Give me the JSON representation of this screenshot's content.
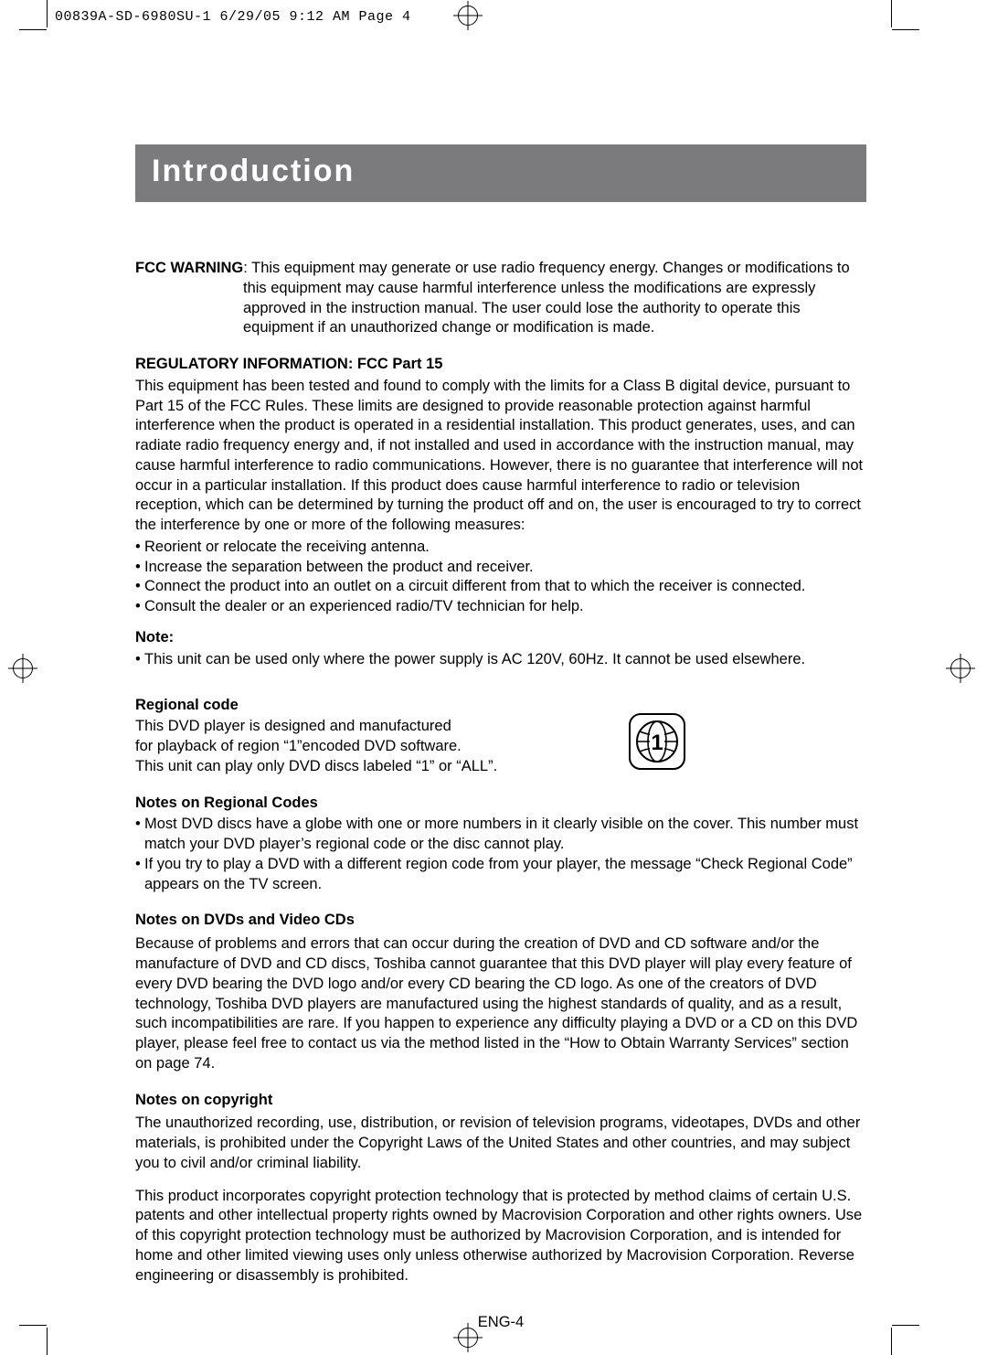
{
  "slug": "00839A-SD-6980SU-1  6/29/05  9:12 AM  Page 4",
  "title": "Introduction",
  "fcc_warning_label": "FCC WARNING",
  "fcc_warning_line1": ": This equipment may generate or use radio frequency energy. Changes or modifications to",
  "fcc_warning_line2": "this equipment may cause harmful interference unless the modifications are expressly",
  "fcc_warning_line3": "approved in the instruction manual. The user could lose the authority to operate this",
  "fcc_warning_line4": "equipment if an unauthorized change or modification is made.",
  "reg_info_heading": "REGULATORY INFORMATION: FCC Part 15",
  "reg_info_body": "This equipment has been tested and found to comply with the limits for a Class B digital device, pursuant to Part 15 of the FCC Rules. These limits are designed to provide reasonable protection against harmful interference when the product is operated in a residential installation. This product generates, uses, and can radiate radio frequency energy and, if not installed and used in accordance with the instruction manual, may cause harmful interference to radio communications. However, there is no guarantee that interference will not occur in a particular installation. If this product does cause harmful interference to radio or television reception, which can be determined by turning the product off and on, the user is encouraged to try to correct the interference by one or more of the following measures:",
  "reg_bullets": [
    "Reorient or relocate the receiving antenna.",
    "Increase the separation between the product and receiver.",
    "Connect the product into an outlet on a circuit different from that to which the receiver is connected.",
    "Consult the dealer or an experienced radio/TV technician for help."
  ],
  "note_label": "Note:",
  "note_bullet": "This unit can be used only where the power supply is AC 120V, 60Hz. It cannot be used elsewhere.",
  "regional_code_heading": "Regional code",
  "regional_code_l1": "This DVD player is designed and manufactured",
  "regional_code_l2": "for playback of region “1”encoded DVD software.",
  "regional_code_l3": "This unit can play only DVD discs labeled “1” or “ALL”.",
  "region_number": "1",
  "notes_regional_heading": "Notes on Regional Codes",
  "notes_regional_bullets": [
    "Most DVD discs have a globe with one or more numbers in it clearly visible on the cover. This number must match your DVD player’s regional code or the disc cannot play.",
    "If you try to play a DVD with a different region code from your player, the message “Check Regional Code” appears on the TV screen."
  ],
  "notes_dvd_heading": "Notes on DVDs and Video CDs",
  "notes_dvd_body": "Because of problems and errors that can occur during the creation of DVD and CD software and/or the manufacture of DVD and CD discs, Toshiba cannot guarantee that this DVD player will play every feature of every DVD bearing the DVD logo and/or every CD bearing the CD logo.  As one of the creators of DVD technology, Toshiba DVD players are manufactured using the highest standards of quality, and as a result, such incompatibilities are rare. If you happen to experience any difficulty playing a DVD or a CD on this DVD player, please feel free to contact us via the method listed in the “How to Obtain Warranty Services” section on page 74.",
  "notes_copyright_heading": "Notes on copyright",
  "notes_copyright_p1": "The unauthorized recording, use, distribution, or revision of television programs, videotapes, DVDs and other materials, is prohibited under the Copyright Laws of the United States and other countries, and may subject you to civil and/or criminal liability.",
  "notes_copyright_p2": "This product incorporates copyright protection technology that is protected by method claims of certain U.S. patents and other intellectual property rights owned by Macrovision Corporation and other rights owners. Use of this copyright protection technology must be authorized by Macrovision Corporation, and is intended for home and other limited viewing uses only unless otherwise authorized by Macrovision Corporation. Reverse engineering or disassembly is prohibited.",
  "page_footer": "ENG-4",
  "colors": {
    "title_bg": "#7b7b7d",
    "title_fg": "#ffffff",
    "text": "#000000",
    "background": "#ffffff"
  }
}
